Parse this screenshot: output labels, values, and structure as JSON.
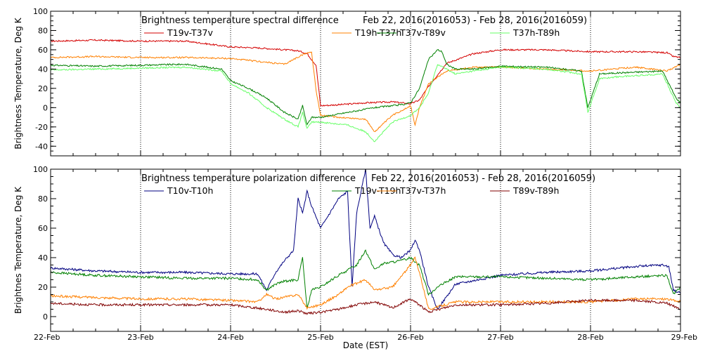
{
  "chart_data": [
    {
      "type": "line",
      "title": "Brightness temperature spectral difference",
      "date_range": "Feb 22, 2016(2016053) - Feb 28, 2016(2016059)",
      "xlabel": "",
      "ylabel": "Brightness Temperature, Deg K",
      "xlim": [
        0,
        7
      ],
      "ylim": [
        -50,
        100
      ],
      "yticks": [
        "-40",
        "-20",
        "0",
        "20",
        "40",
        "60",
        "80",
        "100"
      ],
      "ytick_values": [
        -40,
        -20,
        0,
        20,
        40,
        60,
        80,
        100
      ],
      "grid": "vertical dotted at day boundaries",
      "legend": "top",
      "series": [
        {
          "name": "T19v-T37v",
          "color": "#d40000",
          "x": [
            0,
            0.5,
            1,
            1.5,
            2,
            2.3,
            2.6,
            2.75,
            2.85,
            2.95,
            3.0,
            3.2,
            3.5,
            3.8,
            4.0,
            4.1,
            4.2,
            4.4,
            4.7,
            5.0,
            5.5,
            6.0,
            6.5,
            6.85,
            6.92,
            7.0
          ],
          "y": [
            69,
            70,
            69,
            69,
            63,
            62,
            60,
            59,
            56,
            44,
            2,
            3,
            5,
            6,
            4,
            8,
            22,
            46,
            56,
            60,
            60,
            58,
            58,
            57,
            53,
            52
          ]
        },
        {
          "name": "T19h-T37h",
          "color": "#ff8000",
          "x": [
            0,
            0.5,
            1,
            1.5,
            2,
            2.3,
            2.6,
            2.8,
            2.9,
            2.95,
            3.0,
            3.2,
            3.5,
            3.6,
            3.8,
            4.0,
            4.05,
            4.1,
            4.2,
            4.4,
            4.7,
            5.0,
            5.5,
            6.0,
            6.5,
            6.85,
            7.0
          ],
          "y": [
            52,
            53,
            52,
            52,
            51,
            48,
            45,
            55,
            58,
            18,
            -8,
            -10,
            -12,
            -25,
            -8,
            2,
            -18,
            0,
            25,
            38,
            42,
            42,
            40,
            38,
            42,
            38,
            45
          ]
        },
        {
          "name": "T37v-T89v",
          "color": "#008000",
          "x": [
            0,
            0.5,
            1,
            1.5,
            1.9,
            2.0,
            2.2,
            2.4,
            2.6,
            2.75,
            2.8,
            2.85,
            2.9,
            3.0,
            3.3,
            3.6,
            3.9,
            4.0,
            4.1,
            4.2,
            4.3,
            4.35,
            4.4,
            4.5,
            4.7,
            5.0,
            5.5,
            5.9,
            5.97,
            6.1,
            6.3,
            6.8,
            6.95,
            7.0
          ],
          "y": [
            44,
            43,
            44,
            45,
            40,
            28,
            20,
            10,
            -5,
            -12,
            2,
            -18,
            -10,
            -10,
            -5,
            0,
            3,
            5,
            20,
            50,
            60,
            58,
            45,
            40,
            40,
            43,
            42,
            38,
            0,
            35,
            36,
            38,
            10,
            5
          ]
        },
        {
          "name": "T37h-T89h",
          "color": "#66ff66",
          "x": [
            0,
            0.5,
            1,
            1.5,
            1.9,
            2.0,
            2.2,
            2.4,
            2.6,
            2.75,
            2.8,
            2.85,
            2.9,
            3.0,
            3.3,
            3.5,
            3.6,
            3.8,
            4.0,
            4.1,
            4.2,
            4.3,
            4.4,
            4.5,
            4.7,
            5.0,
            5.5,
            5.9,
            5.97,
            6.1,
            6.3,
            6.8,
            6.95,
            7.0
          ],
          "y": [
            39,
            40,
            41,
            42,
            38,
            25,
            15,
            0,
            -12,
            -20,
            -5,
            -22,
            -15,
            -15,
            -18,
            -25,
            -35,
            -15,
            -8,
            0,
            15,
            45,
            40,
            35,
            38,
            42,
            40,
            35,
            -5,
            30,
            32,
            35,
            5,
            0
          ]
        }
      ]
    },
    {
      "type": "line",
      "title": "Brightness temperature polarization difference",
      "date_range": "Feb 22, 2016(2016053) - Feb 28, 2016(2016059)",
      "xlabel": "Date (EST)",
      "ylabel": "Brightnes Temperature, Deg K",
      "xlim": [
        0,
        7
      ],
      "ylim": [
        -10,
        100
      ],
      "yticks": [
        "0",
        "20",
        "40",
        "60",
        "80",
        "100"
      ],
      "ytick_values": [
        0,
        20,
        40,
        60,
        80,
        100
      ],
      "xticks": [
        "22-Feb",
        "23-Feb",
        "24-Feb",
        "25-Feb",
        "26-Feb",
        "27-Feb",
        "28-Feb",
        "29-Feb"
      ],
      "xtick_values": [
        0,
        1,
        2,
        3,
        4,
        5,
        6,
        7
      ],
      "grid": "vertical dotted at day boundaries",
      "legend": "top",
      "series": [
        {
          "name": "T10v-T10h",
          "color": "#000080",
          "x": [
            0,
            0.5,
            1,
            1.5,
            2,
            2.3,
            2.4,
            2.5,
            2.6,
            2.7,
            2.75,
            2.8,
            2.85,
            2.9,
            3.0,
            3.1,
            3.2,
            3.3,
            3.35,
            3.4,
            3.5,
            3.55,
            3.6,
            3.7,
            3.8,
            3.9,
            4.0,
            4.05,
            4.1,
            4.2,
            4.3,
            4.5,
            5.0,
            5.5,
            6.0,
            6.5,
            6.8,
            6.87,
            6.92,
            7.0
          ],
          "y": [
            33,
            31,
            30,
            30,
            29,
            29,
            18,
            30,
            38,
            45,
            80,
            70,
            85,
            75,
            60,
            70,
            80,
            85,
            20,
            70,
            100,
            60,
            68,
            50,
            42,
            40,
            45,
            52,
            45,
            20,
            5,
            22,
            28,
            30,
            31,
            34,
            35,
            34,
            18,
            16
          ]
        },
        {
          "name": "T19v-T19h",
          "color": "#008000",
          "x": [
            0,
            0.5,
            1,
            1.5,
            2,
            2.3,
            2.4,
            2.5,
            2.6,
            2.75,
            2.8,
            2.85,
            2.9,
            3.0,
            3.2,
            3.4,
            3.5,
            3.6,
            3.7,
            3.9,
            4.0,
            4.1,
            4.2,
            4.3,
            4.5,
            5.0,
            5.5,
            6.0,
            6.5,
            6.85,
            6.92,
            7.0
          ],
          "y": [
            30,
            28,
            27,
            26,
            26,
            25,
            18,
            22,
            24,
            25,
            40,
            5,
            18,
            20,
            28,
            35,
            45,
            32,
            36,
            38,
            40,
            35,
            15,
            20,
            27,
            27,
            26,
            25,
            27,
            28,
            15,
            20
          ]
        },
        {
          "name": "T37v-T37h",
          "color": "#ff8000",
          "x": [
            0,
            0.5,
            1,
            1.5,
            2,
            2.3,
            2.4,
            2.5,
            2.75,
            2.85,
            3.0,
            3.2,
            3.3,
            3.5,
            3.6,
            3.8,
            4.0,
            4.05,
            4.1,
            4.2,
            4.5,
            5.0,
            5.5,
            6.0,
            6.5,
            6.85,
            7.0
          ],
          "y": [
            14,
            13,
            12,
            12,
            11,
            10,
            15,
            12,
            15,
            6,
            8,
            15,
            20,
            25,
            18,
            20,
            35,
            40,
            30,
            5,
            10,
            10,
            10,
            10,
            12,
            12,
            10
          ]
        },
        {
          "name": "T89v-T89h",
          "color": "#800000",
          "x": [
            0,
            0.5,
            1,
            1.5,
            2,
            2.4,
            2.6,
            2.75,
            2.85,
            3.0,
            3.2,
            3.4,
            3.6,
            3.8,
            4.0,
            4.1,
            4.2,
            4.5,
            5.0,
            5.5,
            6.0,
            6.5,
            6.85,
            7.0
          ],
          "y": [
            9,
            8,
            8,
            8,
            8,
            5,
            3,
            4,
            2,
            3,
            5,
            8,
            10,
            6,
            12,
            8,
            3,
            8,
            8,
            9,
            11,
            11,
            9,
            5
          ]
        }
      ]
    }
  ]
}
